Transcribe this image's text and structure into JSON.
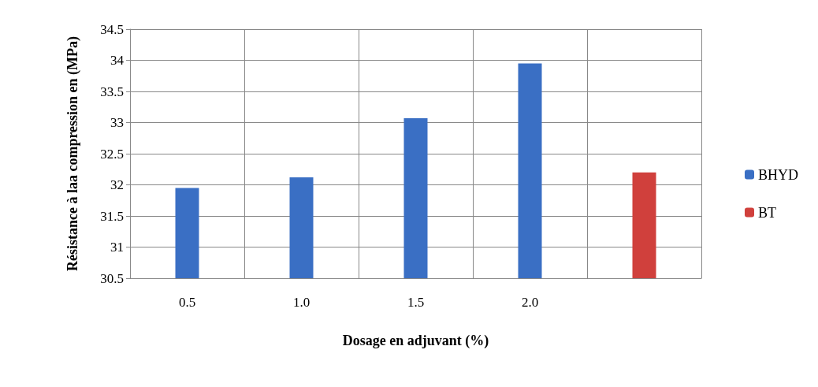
{
  "chart_data": {
    "type": "bar",
    "xlabel": "Dosage en adjuvant (%)",
    "ylabel": "Résistance à laa compression en (MPa)",
    "categories": [
      "0.5",
      "1.0",
      "1.5",
      "2.0",
      null
    ],
    "series": [
      {
        "name": "BHYD",
        "color": "#3a6fc4",
        "values": [
          31.95,
          32.12,
          33.07,
          33.95,
          null
        ]
      },
      {
        "name": "BT",
        "color": "#d0403c",
        "values": [
          null,
          null,
          null,
          null,
          32.2
        ]
      }
    ],
    "ylim": [
      30.5,
      34.5
    ],
    "yticks": [
      30.5,
      31,
      31.5,
      32,
      32.5,
      33,
      33.5,
      34,
      34.5
    ],
    "grid": true,
    "legend": "right"
  }
}
